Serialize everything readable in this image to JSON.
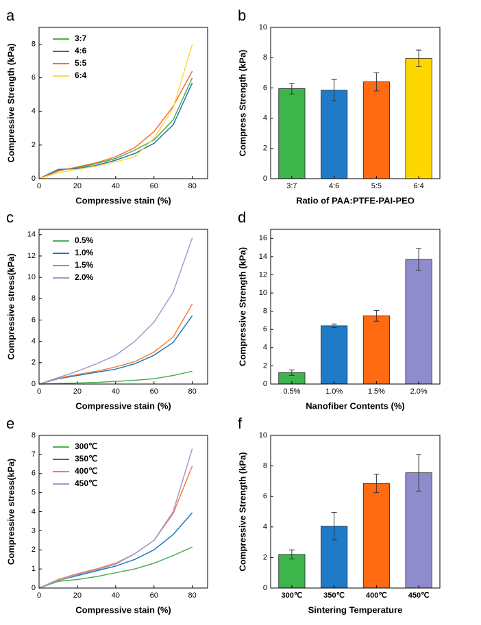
{
  "chart_data": [
    {
      "panel": "a",
      "type": "line",
      "xlabel": "Compressive stain (%)",
      "ylabel": "Compressive Strength (kPa)",
      "x": [
        0,
        10,
        20,
        30,
        40,
        50,
        60,
        70,
        80
      ],
      "xlim": [
        0,
        88
      ],
      "xticks": [
        0,
        20,
        40,
        60,
        80
      ],
      "ylim": [
        0,
        9
      ],
      "yticks": [
        0,
        2,
        4,
        6,
        8
      ],
      "series": [
        {
          "name": "3:7",
          "color": "#4aae4a",
          "values": [
            0,
            0.5,
            0.65,
            0.9,
            1.2,
            1.7,
            2.3,
            3.5,
            6.0
          ]
        },
        {
          "name": "4:6",
          "color": "#1f77b4",
          "values": [
            0,
            0.55,
            0.6,
            0.8,
            1.1,
            1.5,
            2.1,
            3.2,
            5.7
          ]
        },
        {
          "name": "5:5",
          "color": "#f0703a",
          "values": [
            0,
            0.45,
            0.7,
            0.95,
            1.3,
            1.85,
            2.8,
            4.3,
            6.4
          ]
        },
        {
          "name": "6:4",
          "color": "#ffd83a",
          "values": [
            0,
            0.35,
            0.55,
            0.75,
            1.0,
            1.3,
            2.4,
            4.2,
            8.0
          ]
        }
      ]
    },
    {
      "panel": "b",
      "type": "bar",
      "xlabel": "Ratio of PAA:PTFE-PAI-PEO",
      "ylabel": "Compress Strength (kPa)",
      "categories": [
        "3:7",
        "4:6",
        "5:5",
        "6:4"
      ],
      "values": [
        5.95,
        5.85,
        6.4,
        7.95
      ],
      "errors": [
        0.35,
        0.7,
        0.6,
        0.55
      ],
      "colors": [
        "#3cb54a",
        "#1f7ac8",
        "#ff6a13",
        "#ffd700"
      ],
      "ylim": [
        0,
        10
      ],
      "yticks": [
        0,
        2,
        4,
        6,
        8,
        10
      ]
    },
    {
      "panel": "c",
      "type": "line",
      "xlabel": "Compressive stain (%)",
      "ylabel": "Compressive stress(kPa)",
      "x": [
        0,
        10,
        20,
        30,
        40,
        50,
        60,
        70,
        80
      ],
      "xlim": [
        0,
        88
      ],
      "xticks": [
        0,
        20,
        40,
        60,
        80
      ],
      "ylim": [
        0,
        14.5
      ],
      "yticks": [
        0,
        2,
        4,
        6,
        8,
        10,
        12,
        14
      ],
      "series": [
        {
          "name": "0.5%",
          "color": "#4caf50",
          "values": [
            0,
            0.05,
            0.1,
            0.15,
            0.25,
            0.35,
            0.5,
            0.8,
            1.2
          ]
        },
        {
          "name": "1.0%",
          "color": "#1b7ab5",
          "values": [
            0,
            0.5,
            0.8,
            1.1,
            1.4,
            1.9,
            2.7,
            3.9,
            6.4
          ]
        },
        {
          "name": "1.5%",
          "color": "#f07f3c",
          "values": [
            0,
            0.55,
            0.9,
            1.2,
            1.6,
            2.1,
            3.0,
            4.4,
            7.5
          ]
        },
        {
          "name": "2.0%",
          "color": "#a09ad0",
          "values": [
            0,
            0.6,
            1.2,
            1.9,
            2.7,
            4.0,
            5.8,
            8.6,
            13.7
          ]
        }
      ]
    },
    {
      "panel": "d",
      "type": "bar",
      "xlabel": "Nanofiber Contents (%)",
      "ylabel": "Compressive Strength (kPa)",
      "categories": [
        "0.5%",
        "1.0%",
        "1.5%",
        "2.0%"
      ],
      "values": [
        1.25,
        6.4,
        7.5,
        13.7
      ],
      "errors": [
        0.3,
        0.2,
        0.6,
        1.2
      ],
      "colors": [
        "#3cb54a",
        "#1f7ac8",
        "#ff6a13",
        "#8e8ccc"
      ],
      "ylim": [
        0,
        17
      ],
      "yticks": [
        0,
        2,
        4,
        6,
        8,
        10,
        12,
        14,
        16
      ]
    },
    {
      "panel": "e",
      "type": "line",
      "xlabel": "Compressive stain (%)",
      "ylabel": "Compressive stress(kPa)",
      "x": [
        0,
        10,
        20,
        30,
        40,
        50,
        60,
        70,
        80
      ],
      "xlim": [
        0,
        88
      ],
      "xticks": [
        0,
        20,
        40,
        60,
        80
      ],
      "ylim": [
        0,
        8
      ],
      "yticks": [
        0,
        1,
        2,
        3,
        4,
        5,
        6,
        7,
        8
      ],
      "series": [
        {
          "name": "300℃",
          "color": "#4caf50",
          "values": [
            0,
            0.35,
            0.45,
            0.6,
            0.8,
            1.0,
            1.3,
            1.7,
            2.15
          ]
        },
        {
          "name": "350℃",
          "color": "#1b7ab5",
          "values": [
            0,
            0.4,
            0.65,
            0.9,
            1.15,
            1.5,
            2.0,
            2.8,
            3.95
          ]
        },
        {
          "name": "400℃",
          "color": "#f07f3c",
          "values": [
            0,
            0.45,
            0.75,
            1.0,
            1.3,
            1.8,
            2.5,
            3.9,
            6.4
          ]
        },
        {
          "name": "450℃",
          "color": "#a09ad0",
          "values": [
            0,
            0.4,
            0.7,
            0.95,
            1.25,
            1.8,
            2.5,
            4.0,
            7.3
          ]
        }
      ]
    },
    {
      "panel": "f",
      "type": "bar",
      "xlabel": "Sintering Temperature",
      "ylabel": "Compressive Strength (kPa)",
      "categories": [
        "300℃",
        "350℃",
        "400℃",
        "450℃"
      ],
      "values": [
        2.2,
        4.05,
        6.85,
        7.55
      ],
      "errors": [
        0.3,
        0.9,
        0.6,
        1.2
      ],
      "colors": [
        "#3cb54a",
        "#1f7ac8",
        "#ff6a13",
        "#8e8ccc"
      ],
      "ylim": [
        0,
        10
      ],
      "yticks": [
        0,
        2,
        4,
        6,
        8,
        10
      ]
    }
  ]
}
